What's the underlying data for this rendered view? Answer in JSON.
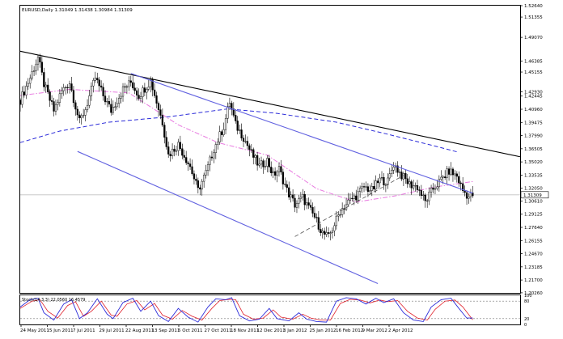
{
  "chart_data": {
    "type": "candlestick",
    "symbol_line": {
      "symbol": "EURUSD,Daily",
      "ohlc": [
        "1.31049",
        "1.31438",
        "1.30984",
        "1.31309"
      ]
    },
    "ylim": [
      1.2025,
      1.5264
    ],
    "y_ticks": [
      "1.52640",
      "1.51355",
      "1.49070",
      "1.46385",
      "1.45155",
      "1.42930",
      "1.42445",
      "1.40960",
      "1.39475",
      "1.37990",
      "1.36505",
      "1.35020",
      "1.33535",
      "1.32050",
      "1.30610",
      "1.29125",
      "1.27640",
      "1.26155",
      "1.24670",
      "1.23185",
      "1.21700",
      "1.20260"
    ],
    "x_ticks": [
      "24 May 2011",
      "15 Jun 2011",
      "7 Jul 2011",
      "29 Jul 2011",
      "22 Aug 2011",
      "13 Sep 2011",
      "5 Oct 2011",
      "27 Oct 2011",
      "18 Nov 2011",
      "12 Dec 2011",
      "3 Jan 2012",
      "25 Jan 2012",
      "16 Feb 2012",
      "9 Mar 2012",
      "2 Apr 2012"
    ],
    "current_price": "1.31309",
    "price_path": [
      {
        "d": 0,
        "v": 1.42
      },
      {
        "d": 5,
        "v": 1.445
      },
      {
        "d": 9,
        "v": 1.468
      },
      {
        "d": 12,
        "v": 1.438
      },
      {
        "d": 17,
        "v": 1.408
      },
      {
        "d": 21,
        "v": 1.43
      },
      {
        "d": 25,
        "v": 1.44
      },
      {
        "d": 30,
        "v": 1.395
      },
      {
        "d": 33,
        "v": 1.41
      },
      {
        "d": 38,
        "v": 1.445
      },
      {
        "d": 42,
        "v": 1.425
      },
      {
        "d": 46,
        "v": 1.408
      },
      {
        "d": 52,
        "v": 1.432
      },
      {
        "d": 56,
        "v": 1.44
      },
      {
        "d": 60,
        "v": 1.425
      },
      {
        "d": 66,
        "v": 1.442
      },
      {
        "d": 69,
        "v": 1.418
      },
      {
        "d": 72,
        "v": 1.395
      },
      {
        "d": 75,
        "v": 1.358
      },
      {
        "d": 80,
        "v": 1.37
      },
      {
        "d": 86,
        "v": 1.345
      },
      {
        "d": 90,
        "v": 1.318
      },
      {
        "d": 94,
        "v": 1.338
      },
      {
        "d": 98,
        "v": 1.365
      },
      {
        "d": 103,
        "v": 1.39
      },
      {
        "d": 106,
        "v": 1.418
      },
      {
        "d": 109,
        "v": 1.392
      },
      {
        "d": 113,
        "v": 1.378
      },
      {
        "d": 117,
        "v": 1.36
      },
      {
        "d": 121,
        "v": 1.345
      },
      {
        "d": 125,
        "v": 1.352
      },
      {
        "d": 128,
        "v": 1.335
      },
      {
        "d": 131,
        "v": 1.342
      },
      {
        "d": 135,
        "v": 1.318
      },
      {
        "d": 139,
        "v": 1.302
      },
      {
        "d": 143,
        "v": 1.31
      },
      {
        "d": 146,
        "v": 1.298
      },
      {
        "d": 149,
        "v": 1.288
      },
      {
        "d": 153,
        "v": 1.27
      },
      {
        "d": 156,
        "v": 1.265
      },
      {
        "d": 159,
        "v": 1.28
      },
      {
        "d": 162,
        "v": 1.295
      },
      {
        "d": 166,
        "v": 1.305
      },
      {
        "d": 170,
        "v": 1.312
      },
      {
        "d": 174,
        "v": 1.322
      },
      {
        "d": 178,
        "v": 1.318
      },
      {
        "d": 182,
        "v": 1.33
      },
      {
        "d": 186,
        "v": 1.328
      },
      {
        "d": 189,
        "v": 1.348
      },
      {
        "d": 193,
        "v": 1.335
      },
      {
        "d": 197,
        "v": 1.325
      },
      {
        "d": 201,
        "v": 1.322
      },
      {
        "d": 205,
        "v": 1.305
      },
      {
        "d": 209,
        "v": 1.32
      },
      {
        "d": 213,
        "v": 1.33
      },
      {
        "d": 217,
        "v": 1.34
      },
      {
        "d": 221,
        "v": 1.334
      },
      {
        "d": 224,
        "v": 1.318
      },
      {
        "d": 227,
        "v": 1.311
      },
      {
        "d": 229,
        "v": 1.313
      }
    ],
    "moving_averages": [
      {
        "name": "fast",
        "color": "#e879e0",
        "style": "dash-dot",
        "path": [
          {
            "d": 0,
            "v": 1.425
          },
          {
            "d": 25,
            "v": 1.432
          },
          {
            "d": 55,
            "v": 1.428
          },
          {
            "d": 80,
            "v": 1.392
          },
          {
            "d": 100,
            "v": 1.372
          },
          {
            "d": 125,
            "v": 1.358
          },
          {
            "d": 150,
            "v": 1.32
          },
          {
            "d": 170,
            "v": 1.305
          },
          {
            "d": 190,
            "v": 1.312
          },
          {
            "d": 210,
            "v": 1.322
          },
          {
            "d": 229,
            "v": 1.328
          }
        ]
      },
      {
        "name": "slow",
        "color": "#2b2bd9",
        "style": "dashed",
        "path": [
          {
            "d": 0,
            "v": 1.372
          },
          {
            "d": 20,
            "v": 1.385
          },
          {
            "d": 45,
            "v": 1.395
          },
          {
            "d": 75,
            "v": 1.401
          },
          {
            "d": 105,
            "v": 1.41
          },
          {
            "d": 130,
            "v": 1.405
          },
          {
            "d": 160,
            "v": 1.395
          },
          {
            "d": 185,
            "v": 1.382
          },
          {
            "d": 210,
            "v": 1.368
          },
          {
            "d": 222,
            "v": 1.361
          }
        ]
      }
    ],
    "trend_lines": [
      {
        "name": "long-term-resistance",
        "color": "#000000",
        "style": "solid",
        "from": {
          "d": 0,
          "v": 1.475
        },
        "to": {
          "d": 253,
          "v": 1.356
        }
      },
      {
        "name": "channel-upper",
        "color": "#6161e0",
        "style": "solid",
        "from": {
          "d": 56,
          "v": 1.45
        },
        "to": {
          "d": 229,
          "v": 1.315
        }
      },
      {
        "name": "channel-lower",
        "color": "#6161e0",
        "style": "solid",
        "from": {
          "d": 29,
          "v": 1.362
        },
        "to": {
          "d": 181,
          "v": 1.213
        }
      },
      {
        "name": "rising-support",
        "color": "#555555",
        "style": "dashed",
        "from": {
          "d": 139,
          "v": 1.266
        },
        "to": {
          "d": 194,
          "v": 1.335
        }
      }
    ],
    "oscillator": {
      "label": "Stoch(14,3,3) 22.0560 16.4579",
      "ylim": [
        0,
        100
      ],
      "levels": [
        80,
        20
      ],
      "axis_labels": [
        "100",
        "80",
        "20",
        "0"
      ],
      "main_color": "#2b2bd9",
      "signal_color": "#e0202a",
      "main": [
        {
          "d": 0,
          "v": 60
        },
        {
          "d": 5,
          "v": 85
        },
        {
          "d": 9,
          "v": 90
        },
        {
          "d": 12,
          "v": 40
        },
        {
          "d": 17,
          "v": 15
        },
        {
          "d": 22,
          "v": 70
        },
        {
          "d": 26,
          "v": 85
        },
        {
          "d": 30,
          "v": 20
        },
        {
          "d": 34,
          "v": 40
        },
        {
          "d": 39,
          "v": 88
        },
        {
          "d": 44,
          "v": 35
        },
        {
          "d": 47,
          "v": 20
        },
        {
          "d": 52,
          "v": 75
        },
        {
          "d": 57,
          "v": 90
        },
        {
          "d": 61,
          "v": 45
        },
        {
          "d": 66,
          "v": 80
        },
        {
          "d": 70,
          "v": 30
        },
        {
          "d": 75,
          "v": 10
        },
        {
          "d": 80,
          "v": 55
        },
        {
          "d": 85,
          "v": 25
        },
        {
          "d": 90,
          "v": 8
        },
        {
          "d": 95,
          "v": 60
        },
        {
          "d": 99,
          "v": 88
        },
        {
          "d": 104,
          "v": 85
        },
        {
          "d": 107,
          "v": 92
        },
        {
          "d": 111,
          "v": 30
        },
        {
          "d": 116,
          "v": 12
        },
        {
          "d": 121,
          "v": 18
        },
        {
          "d": 126,
          "v": 55
        },
        {
          "d": 130,
          "v": 20
        },
        {
          "d": 136,
          "v": 12
        },
        {
          "d": 141,
          "v": 40
        },
        {
          "d": 145,
          "v": 18
        },
        {
          "d": 150,
          "v": 10
        },
        {
          "d": 155,
          "v": 8
        },
        {
          "d": 160,
          "v": 80
        },
        {
          "d": 165,
          "v": 92
        },
        {
          "d": 170,
          "v": 88
        },
        {
          "d": 175,
          "v": 70
        },
        {
          "d": 180,
          "v": 90
        },
        {
          "d": 184,
          "v": 75
        },
        {
          "d": 189,
          "v": 88
        },
        {
          "d": 194,
          "v": 40
        },
        {
          "d": 199,
          "v": 15
        },
        {
          "d": 204,
          "v": 10
        },
        {
          "d": 208,
          "v": 60
        },
        {
          "d": 213,
          "v": 85
        },
        {
          "d": 218,
          "v": 90
        },
        {
          "d": 222,
          "v": 55
        },
        {
          "d": 226,
          "v": 22
        },
        {
          "d": 229,
          "v": 22
        }
      ],
      "signal": [
        {
          "d": 0,
          "v": 55
        },
        {
          "d": 6,
          "v": 80
        },
        {
          "d": 10,
          "v": 85
        },
        {
          "d": 14,
          "v": 45
        },
        {
          "d": 19,
          "v": 22
        },
        {
          "d": 24,
          "v": 65
        },
        {
          "d": 28,
          "v": 78
        },
        {
          "d": 32,
          "v": 28
        },
        {
          "d": 36,
          "v": 45
        },
        {
          "d": 41,
          "v": 80
        },
        {
          "d": 46,
          "v": 32
        },
        {
          "d": 49,
          "v": 28
        },
        {
          "d": 54,
          "v": 70
        },
        {
          "d": 59,
          "v": 82
        },
        {
          "d": 63,
          "v": 50
        },
        {
          "d": 68,
          "v": 72
        },
        {
          "d": 72,
          "v": 32
        },
        {
          "d": 77,
          "v": 18
        },
        {
          "d": 82,
          "v": 48
        },
        {
          "d": 87,
          "v": 28
        },
        {
          "d": 92,
          "v": 15
        },
        {
          "d": 97,
          "v": 55
        },
        {
          "d": 101,
          "v": 82
        },
        {
          "d": 106,
          "v": 86
        },
        {
          "d": 109,
          "v": 85
        },
        {
          "d": 113,
          "v": 35
        },
        {
          "d": 118,
          "v": 18
        },
        {
          "d": 123,
          "v": 22
        },
        {
          "d": 128,
          "v": 50
        },
        {
          "d": 132,
          "v": 25
        },
        {
          "d": 138,
          "v": 18
        },
        {
          "d": 143,
          "v": 35
        },
        {
          "d": 147,
          "v": 22
        },
        {
          "d": 152,
          "v": 15
        },
        {
          "d": 157,
          "v": 15
        },
        {
          "d": 162,
          "v": 72
        },
        {
          "d": 167,
          "v": 86
        },
        {
          "d": 172,
          "v": 84
        },
        {
          "d": 177,
          "v": 74
        },
        {
          "d": 182,
          "v": 84
        },
        {
          "d": 186,
          "v": 78
        },
        {
          "d": 191,
          "v": 82
        },
        {
          "d": 196,
          "v": 45
        },
        {
          "d": 201,
          "v": 22
        },
        {
          "d": 206,
          "v": 15
        },
        {
          "d": 210,
          "v": 52
        },
        {
          "d": 215,
          "v": 80
        },
        {
          "d": 220,
          "v": 84
        },
        {
          "d": 224,
          "v": 60
        },
        {
          "d": 228,
          "v": 25
        },
        {
          "d": 229,
          "v": 16
        }
      ]
    }
  }
}
